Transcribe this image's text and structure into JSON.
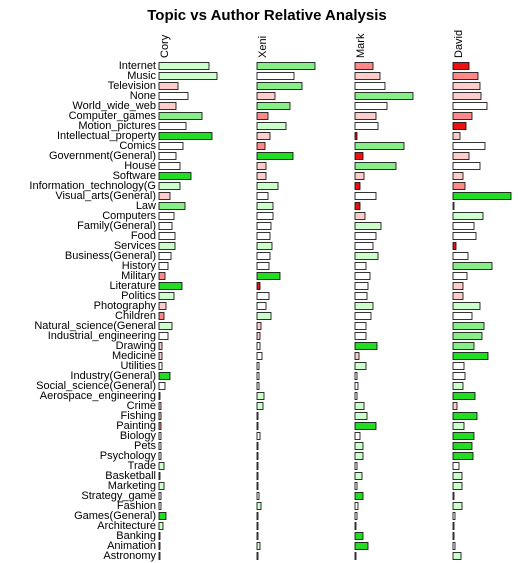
{
  "chart_data": {
    "type": "bar",
    "orientation": "horizontal",
    "title": "Topic vs Author Relative Analysis",
    "categories": [
      "Internet",
      "Music",
      "Television",
      "None",
      "World_wide_web",
      "Computer_games",
      "Motion_pictures",
      "Intellectual_property",
      "Comics",
      "Government(General)",
      "House",
      "Software",
      "Information_technology(G",
      "Visual_arts(General)",
      "Law",
      "Computers",
      "Family(General)",
      "Food",
      "Services",
      "Business(General)",
      "History",
      "Military",
      "Literature",
      "Politics",
      "Photography",
      "Children",
      "Natural_science(General",
      "Industrial_engineering",
      "Drawing",
      "Medicine",
      "Utilities",
      "Industry(General)",
      "Social_science(General)",
      "Aerospace_engineering",
      "Crime",
      "Fishing",
      "Painting",
      "Biology",
      "Pets",
      "Psychology",
      "Trade",
      "Basketball",
      "Marketing",
      "Strategy_game",
      "Fashion",
      "Games(General)",
      "Architecture",
      "Banking",
      "Animation",
      "Astronomy"
    ],
    "series": [
      {
        "name": "Cory",
        "values": [
          50,
          58,
          19,
          29,
          17,
          43,
          27,
          53,
          24,
          17,
          21,
          32,
          21,
          11,
          26,
          15,
          13,
          16,
          16,
          12,
          9,
          6,
          23,
          15,
          7,
          5,
          13,
          9,
          3,
          3,
          3,
          11,
          6,
          1,
          2,
          2,
          2,
          2,
          2,
          2,
          5,
          1,
          5,
          2,
          2,
          7,
          4,
          1,
          1,
          1
        ],
        "colors": [
          "#ccffcc",
          "#ccffcc",
          "#ffcccc",
          "#ffffff",
          "#ffcccc",
          "#88ee88",
          "#ffffff",
          "#22dd22",
          "#ffffff",
          "#ffffff",
          "#ffffff",
          "#22dd22",
          "#ccffcc",
          "#ffcccc",
          "#88ee88",
          "#ffffff",
          "#ffffff",
          "#ffffff",
          "#ccffcc",
          "#ffffff",
          "#ffffff",
          "#ff8888",
          "#22dd22",
          "#ccffcc",
          "#ffcccc",
          "#ff8888",
          "#ccffcc",
          "#ffffff",
          "#ffcccc",
          "#ffcccc",
          "#ffffff",
          "#22dd22",
          "#ffffff",
          "#ffffff",
          "#ffcccc",
          "#ffcccc",
          "#ff8888",
          "#ffffff",
          "#ffffff",
          "#ffffff",
          "#ccffcc",
          "#ffffff",
          "#ccffcc",
          "#ffffff",
          "#ffffff",
          "#22dd22",
          "#ccffcc",
          "#ffffff",
          "#ffffff",
          "#ffffff"
        ]
      },
      {
        "name": "Xeni",
        "values": [
          58,
          37,
          45,
          18,
          33,
          11,
          29,
          13,
          8,
          36,
          9,
          9,
          21,
          11,
          16,
          16,
          14,
          13,
          15,
          13,
          12,
          23,
          3,
          12,
          9,
          14,
          4,
          3,
          3,
          5,
          2,
          2,
          2,
          7,
          6,
          1,
          1,
          3,
          1,
          1,
          1,
          1,
          1,
          2,
          4,
          1,
          1,
          1,
          3,
          1
        ],
        "colors": [
          "#88ee88",
          "#ffffff",
          "#88ee88",
          "#ffcccc",
          "#88ee88",
          "#ff8888",
          "#ccffcc",
          "#ffcccc",
          "#ff8888",
          "#22dd22",
          "#ffcccc",
          "#ffcccc",
          "#ccffcc",
          "#ffffff",
          "#ccffcc",
          "#ffffff",
          "#ffffff",
          "#ffffff",
          "#ccffcc",
          "#ffffff",
          "#ffffff",
          "#22dd22",
          "#ee1111",
          "#ffffff",
          "#ffffff",
          "#ccffcc",
          "#ffcccc",
          "#ffcccc",
          "#ffffff",
          "#ffffff",
          "#ffffff",
          "#ffffff",
          "#ffffff",
          "#ccffcc",
          "#ccffcc",
          "#ffffff",
          "#ffffff",
          "#ffffff",
          "#ffffff",
          "#ffffff",
          "#ffffff",
          "#ffffff",
          "#ffffff",
          "#ffffff",
          "#ccffcc",
          "#ffffff",
          "#ffffff",
          "#ffffff",
          "#ccffcc",
          "#ffffff"
        ]
      },
      {
        "name": "Mark",
        "values": [
          18,
          25,
          30,
          58,
          32,
          21,
          23,
          2,
          49,
          8,
          41,
          9,
          5,
          21,
          5,
          10,
          26,
          21,
          18,
          23,
          11,
          15,
          13,
          12,
          18,
          16,
          11,
          11,
          22,
          4,
          11,
          2,
          3,
          2,
          9,
          12,
          21,
          5,
          8,
          8,
          2,
          7,
          2,
          8,
          3,
          2,
          1,
          8,
          13,
          1
        ],
        "colors": [
          "#ff8888",
          "#ffcccc",
          "#ffffff",
          "#88ee88",
          "#ffffff",
          "#ffcccc",
          "#ffffff",
          "#ee1111",
          "#88ee88",
          "#ee1111",
          "#88ee88",
          "#ffcccc",
          "#ee1111",
          "#ffffff",
          "#ee1111",
          "#ffcccc",
          "#ccffcc",
          "#ffffff",
          "#ffffff",
          "#ccffcc",
          "#ffffff",
          "#ffffff",
          "#ffffff",
          "#ffffff",
          "#ccffcc",
          "#ffffff",
          "#ffffff",
          "#ffffff",
          "#22dd22",
          "#ffcccc",
          "#ccffcc",
          "#ffffff",
          "#ffffff",
          "#ffffff",
          "#ccffcc",
          "#ccffcc",
          "#22dd22",
          "#ffffff",
          "#ccffcc",
          "#ccffcc",
          "#ffffff",
          "#ccffcc",
          "#ffffff",
          "#22dd22",
          "#ffffff",
          "#ffffff",
          "#ffffff",
          "#22dd22",
          "#22dd22",
          "#ffffff"
        ]
      },
      {
        "name": "David",
        "values": [
          16,
          25,
          27,
          28,
          34,
          19,
          13,
          7,
          32,
          16,
          27,
          10,
          12,
          58,
          1,
          30,
          21,
          23,
          3,
          15,
          39,
          14,
          10,
          10,
          27,
          19,
          31,
          29,
          21,
          35,
          11,
          12,
          10,
          22,
          4,
          24,
          11,
          21,
          19,
          20,
          6,
          9,
          9,
          1,
          9,
          2,
          1,
          1,
          2,
          8
        ],
        "colors": [
          "#ee1111",
          "#ff8888",
          "#ffcccc",
          "#ffcccc",
          "#ffffff",
          "#ff8888",
          "#ee1111",
          "#ffcccc",
          "#ffffff",
          "#ffcccc",
          "#ffffff",
          "#ffcccc",
          "#ff8888",
          "#22dd22",
          "#ffffff",
          "#ccffcc",
          "#ffffff",
          "#ffffff",
          "#ee1111",
          "#ffffff",
          "#88ee88",
          "#ffffff",
          "#ffcccc",
          "#ffcccc",
          "#ccffcc",
          "#ffffff",
          "#88ee88",
          "#88ee88",
          "#88ee88",
          "#22dd22",
          "#ffffff",
          "#ffffff",
          "#ccffcc",
          "#22dd22",
          "#ffcccc",
          "#22dd22",
          "#ccffcc",
          "#22dd22",
          "#22dd22",
          "#22dd22",
          "#ffffff",
          "#ccffcc",
          "#ccffcc",
          "#ffffff",
          "#ccffcc",
          "#ffffff",
          "#ffffff",
          "#ffffff",
          "#ffffff",
          "#ccffcc"
        ]
      }
    ]
  }
}
